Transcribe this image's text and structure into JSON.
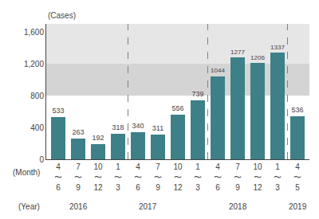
{
  "chart_data": {
    "type": "bar",
    "categories": [
      "4\n〜\n6",
      "7\n〜\n9",
      "10\n〜\n12",
      "1\n〜\n3",
      "4\n〜\n6",
      "7\n〜\n9",
      "10\n〜\n12",
      "1\n〜\n3",
      "4\n〜\n6",
      "7\n〜\n9",
      "10\n〜\n12",
      "1\n〜\n3",
      "4\n〜\n5"
    ],
    "values": [
      533,
      263,
      192,
      318,
      340,
      311,
      556,
      739,
      1044,
      1277,
      1206,
      1337,
      536
    ],
    "color": "#3d8088",
    "data_labels": true,
    "ylabel": "(Cases)",
    "xlabel": "(Month)",
    "year_label": "(Year)",
    "years": [
      "2016",
      "2017",
      "2018",
      "2019"
    ],
    "bands": [
      {
        "from": 800,
        "to": 1200
      },
      {
        "from": 1200,
        "to": 1700
      }
    ],
    "ylim": [
      0,
      1700
    ],
    "yticks": [
      0,
      400,
      800,
      {
        "value": 1200,
        "label": "1,200"
      },
      {
        "value": 1600,
        "label": "1,600"
      }
    ],
    "grid": false
  }
}
